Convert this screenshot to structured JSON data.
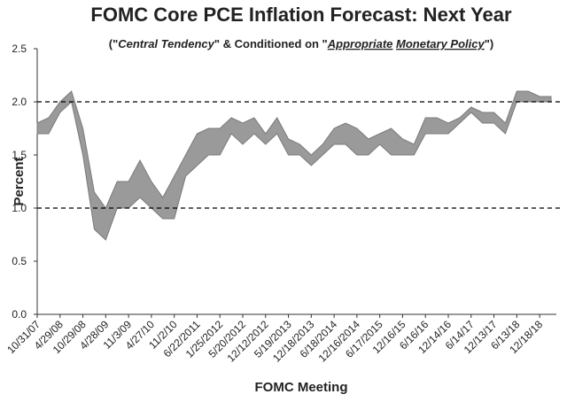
{
  "chart_data": {
    "type": "band",
    "title": "FOMC Core PCE Inflation Forecast: Next Year",
    "subtitle": [
      "(\"",
      "Central Tendency",
      "\" & Conditioned on \"",
      "Appropriate",
      " ",
      "Monetary Policy",
      "\")"
    ],
    "x_label": "FOMC Meeting",
    "y_label": "Percent",
    "categories": [
      "10/31/07",
      null,
      "4/29/08",
      null,
      "10/29/08",
      null,
      "4/28/09",
      null,
      "11/3/09",
      null,
      "4/27/10",
      null,
      "11/2/10",
      null,
      "6/22/2011",
      null,
      "1/25/2012",
      null,
      "5/20/2012",
      null,
      "12/12/2012",
      null,
      "5/19/2013",
      null,
      "12/18/2013",
      null,
      "6/18/2014",
      null,
      "12/16/2014",
      null,
      "6/17/2015",
      null,
      "12/16/15",
      null,
      "6/16/16",
      null,
      "12/14/16",
      null,
      "6/14/17",
      null,
      "12/13/17",
      null,
      "6/13/18",
      null,
      "12/18/18",
      null
    ],
    "band": {
      "color": "#9a9a9a",
      "low": [
        1.7,
        1.7,
        1.9,
        2.0,
        1.5,
        0.8,
        0.7,
        1.0,
        1.0,
        1.1,
        1.0,
        0.9,
        0.9,
        1.3,
        1.4,
        1.5,
        1.5,
        1.7,
        1.6,
        1.7,
        1.6,
        1.7,
        1.5,
        1.5,
        1.4,
        1.5,
        1.6,
        1.6,
        1.5,
        1.5,
        1.6,
        1.5,
        1.5,
        1.5,
        1.7,
        1.7,
        1.7,
        1.8,
        1.9,
        1.8,
        1.8,
        1.7,
        2.0,
        2.0,
        2.0,
        2.0
      ],
      "high": [
        1.8,
        1.85,
        2.0,
        2.1,
        1.75,
        1.15,
        1.0,
        1.25,
        1.25,
        1.45,
        1.25,
        1.1,
        1.3,
        1.5,
        1.7,
        1.75,
        1.75,
        1.85,
        1.8,
        1.85,
        1.7,
        1.85,
        1.65,
        1.6,
        1.5,
        1.6,
        1.75,
        1.8,
        1.75,
        1.65,
        1.7,
        1.75,
        1.65,
        1.6,
        1.85,
        1.85,
        1.8,
        1.85,
        1.95,
        1.9,
        1.9,
        1.8,
        2.1,
        2.1,
        2.05,
        2.05
      ]
    },
    "ylim": [
      0,
      2.5
    ],
    "yticks": [
      {
        "value": 0,
        "label": "0.0"
      },
      0.5,
      {
        "value": 1,
        "label": "1.0"
      },
      1.5,
      {
        "value": 2,
        "label": "2.0"
      },
      2.5
    ],
    "reference_lines": [
      1,
      2
    ]
  }
}
